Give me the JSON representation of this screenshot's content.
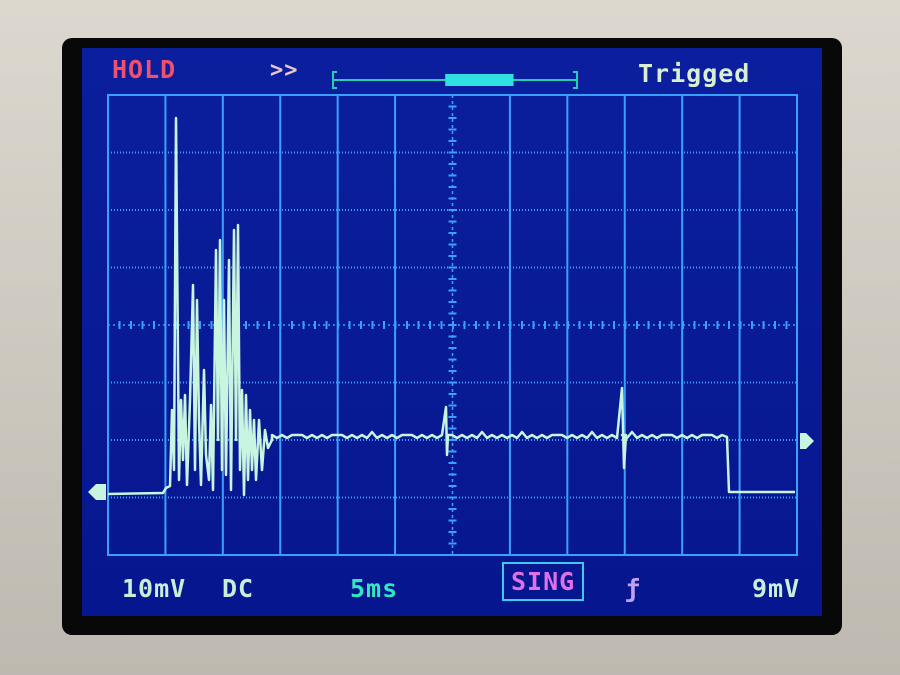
{
  "status": {
    "hold": "HOLD",
    "scroll_icon": "double-chevron-right-icon",
    "trigger_state": "Trigged"
  },
  "footer": {
    "volts_per_div": "10mV",
    "coupling": "DC",
    "time_per_div": "5ms",
    "trigger_mode": "SING",
    "trigger_edge": "rising-edge-icon",
    "trigger_edge_glyph": "ƒ",
    "trigger_level": "9mV"
  },
  "colors": {
    "screen": "#0b1f9e",
    "grid": "#3aa0ff",
    "trace": "#c8f5e0",
    "hold": "#f0506a",
    "timebase": "#30e8c0",
    "mode": "#e070e8"
  },
  "buffer_position": {
    "window_start": 0.46,
    "window_end": 0.74
  }
}
